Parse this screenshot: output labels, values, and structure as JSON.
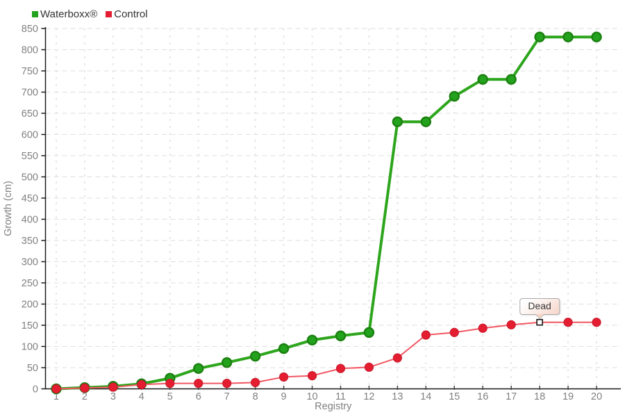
{
  "legend": {
    "items": [
      {
        "label": "Waterboxx®",
        "color": "#23a31d"
      },
      {
        "label": "Control",
        "color": "#e51d31"
      }
    ]
  },
  "chart_data": {
    "type": "line",
    "x": [
      1,
      2,
      3,
      4,
      5,
      6,
      7,
      8,
      9,
      10,
      11,
      12,
      13,
      14,
      15,
      16,
      17,
      18,
      19,
      20
    ],
    "xlabel": "Registry",
    "ylabel": "Growth (cm)",
    "ylim": [
      0,
      850
    ],
    "ytick_step": 50,
    "grid": true,
    "legend_position": "top-left",
    "series": [
      {
        "name": "Waterboxx®",
        "color": "#23a31d",
        "line_color": "#2da51c",
        "marker_stroke": "#1b8010",
        "values": [
          0,
          3,
          6,
          12,
          25,
          48,
          62,
          77,
          95,
          115,
          125,
          133,
          630,
          630,
          690,
          730,
          730,
          830,
          830,
          830
        ]
      },
      {
        "name": "Control",
        "color": "#e51d31",
        "line_color": "#f25663",
        "marker_stroke": "#c91a2c",
        "values": [
          0,
          2,
          4,
          10,
          13,
          13,
          13,
          15,
          28,
          31,
          48,
          51,
          73,
          127,
          133,
          143,
          151,
          157,
          157,
          157
        ]
      }
    ],
    "annotation": {
      "text": "Dead",
      "series": "Control",
      "x": 18,
      "y": 157
    },
    "colors": {
      "axis": "#1a1a1a",
      "tick_label": "#808080",
      "axis_title": "#808080",
      "grid_h": "#dedede",
      "grid_v": "#e7e7e7",
      "dead_marker_fill": "#ffffff",
      "dead_marker_stroke": "#111111"
    }
  }
}
